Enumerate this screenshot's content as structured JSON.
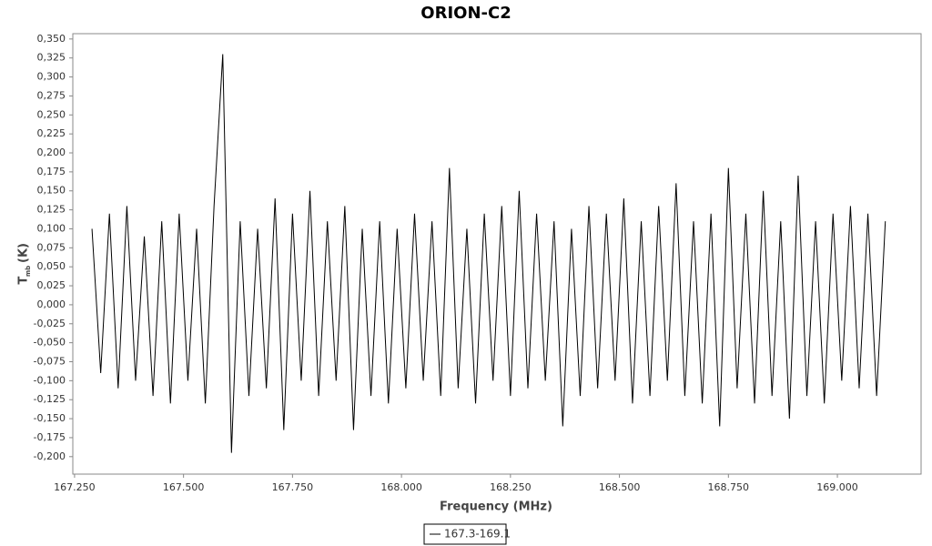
{
  "chart_data": {
    "type": "line",
    "title": "ORION-C2",
    "x_label": "Frequency (MHz)",
    "y_label": {
      "main": "T",
      "sub": "mb",
      "unit": "(K)"
    },
    "xlim": [
      167.246,
      169.192
    ],
    "ylim": [
      -0.223,
      0.357
    ],
    "xticks": [
      {
        "value": 167.25,
        "label": "167.250"
      },
      {
        "value": 167.5,
        "label": "167.500"
      },
      {
        "value": 167.75,
        "label": "167.750"
      },
      {
        "value": 168,
        "label": "168.000"
      },
      {
        "value": 168.25,
        "label": "168.250"
      },
      {
        "value": 168.5,
        "label": "168.500"
      },
      {
        "value": 168.75,
        "label": "168.750"
      },
      {
        "value": 169,
        "label": "169.000"
      }
    ],
    "yticks": [
      {
        "value": 0.35,
        "label": "0,350"
      },
      {
        "value": 0.325,
        "label": "0,325"
      },
      {
        "value": 0.3,
        "label": "0,300"
      },
      {
        "value": 0.275,
        "label": "0,275"
      },
      {
        "value": 0.25,
        "label": "0,250"
      },
      {
        "value": 0.225,
        "label": "0,225"
      },
      {
        "value": 0.2,
        "label": "0,200"
      },
      {
        "value": 0.175,
        "label": "0,175"
      },
      {
        "value": 0.15,
        "label": "0,150"
      },
      {
        "value": 0.125,
        "label": "0,125"
      },
      {
        "value": 0.1,
        "label": "0,100"
      },
      {
        "value": 0.075,
        "label": "0,075"
      },
      {
        "value": 0.05,
        "label": "0,050"
      },
      {
        "value": 0.025,
        "label": "0,025"
      },
      {
        "value": 0,
        "label": "0,000"
      },
      {
        "value": -0.025,
        "label": "-0,025"
      },
      {
        "value": -0.05,
        "label": "-0,050"
      },
      {
        "value": -0.075,
        "label": "-0,075"
      },
      {
        "value": -0.1,
        "label": "-0,100"
      },
      {
        "value": -0.125,
        "label": "-0,125"
      },
      {
        "value": -0.15,
        "label": "-0,150"
      },
      {
        "value": -0.175,
        "label": "-0,175"
      },
      {
        "value": -0.2,
        "label": "-0,200"
      }
    ],
    "grid": false,
    "legend": "bottom",
    "x": [
      167.29,
      167.31,
      167.33,
      167.35,
      167.37,
      167.39,
      167.41,
      167.43,
      167.45,
      167.47,
      167.49,
      167.51,
      167.53,
      167.55,
      167.57,
      167.59,
      167.61,
      167.63,
      167.65,
      167.67,
      167.69,
      167.71,
      167.73,
      167.75,
      167.77,
      167.79,
      167.81,
      167.83,
      167.85,
      167.87,
      167.89,
      167.91,
      167.93,
      167.95,
      167.97,
      167.99,
      168.01,
      168.03,
      168.05,
      168.07,
      168.09,
      168.11,
      168.13,
      168.15,
      168.17,
      168.19,
      168.21,
      168.23,
      168.25,
      168.27,
      168.29,
      168.31,
      168.33,
      168.35,
      168.37,
      168.39,
      168.41,
      168.43,
      168.45,
      168.47,
      168.49,
      168.51,
      168.53,
      168.55,
      168.57,
      168.59,
      168.61,
      168.63,
      168.65,
      168.67,
      168.69,
      168.71,
      168.73,
      168.75,
      168.77,
      168.79,
      168.81,
      168.83,
      168.85,
      168.87,
      168.89,
      168.91,
      168.93,
      168.95,
      168.97,
      168.99,
      169.01,
      169.03,
      169.05,
      169.07,
      169.09,
      169.11
    ],
    "series": [
      {
        "name": "167.3-169.1",
        "color": "#000000",
        "values": [
          0.1,
          -0.09,
          0.12,
          -0.11,
          0.13,
          -0.1,
          0.09,
          -0.12,
          0.11,
          -0.13,
          0.12,
          -0.1,
          0.1,
          -0.13,
          0.13,
          0.33,
          -0.195,
          0.11,
          -0.12,
          0.1,
          -0.11,
          0.14,
          -0.165,
          0.12,
          -0.1,
          0.15,
          -0.12,
          0.11,
          -0.1,
          0.13,
          -0.165,
          0.1,
          -0.12,
          0.11,
          -0.13,
          0.1,
          -0.11,
          0.12,
          -0.1,
          0.11,
          -0.12,
          0.18,
          -0.11,
          0.1,
          -0.13,
          0.12,
          -0.1,
          0.13,
          -0.12,
          0.15,
          -0.11,
          0.12,
          -0.1,
          0.11,
          -0.16,
          0.1,
          -0.12,
          0.13,
          -0.11,
          0.12,
          -0.1,
          0.14,
          -0.13,
          0.11,
          -0.12,
          0.13,
          -0.1,
          0.16,
          -0.12,
          0.11,
          -0.13,
          0.12,
          -0.16,
          0.18,
          -0.11,
          0.12,
          -0.13,
          0.15,
          -0.12,
          0.11,
          -0.15,
          0.17,
          -0.12,
          0.11,
          -0.13,
          0.12,
          -0.1,
          0.13,
          -0.11,
          0.12,
          -0.12,
          0.11
        ]
      }
    ]
  }
}
